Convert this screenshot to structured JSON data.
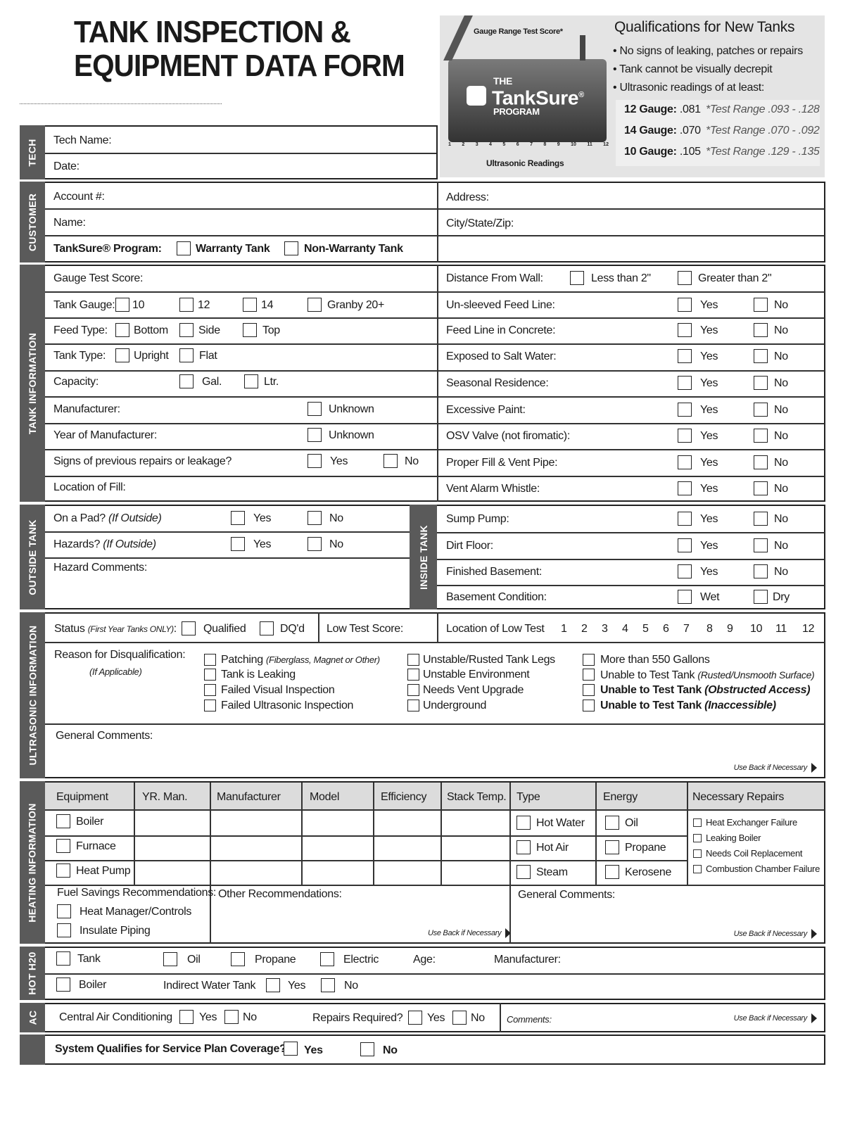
{
  "title": {
    "line1": "TANK INSPECTION &",
    "line2": "EQUIPMENT DATA FORM"
  },
  "logo": {
    "gauge_label": "Gauge Range Test Score*",
    "the": "THE",
    "brand": "TankSure",
    "reg": "®",
    "program": "PROGRAM",
    "readings_label": "Ultrasonic Readings",
    "numbers": [
      "1",
      "2",
      "3",
      "4",
      "5",
      "6",
      "7",
      "8",
      "9",
      "10",
      "11",
      "12"
    ]
  },
  "qualifications": {
    "title": "Qualifications for New Tanks",
    "bullets": [
      "• No signs of leaking, patches or repairs",
      "• Tank cannot be visually decrepit",
      "• Ultrasonic readings of at least:"
    ],
    "gauges": [
      {
        "label": "12 Gauge:",
        "value": ".081",
        "range": "*Test Range .093 - .128"
      },
      {
        "label": "14 Gauge:",
        "value": ".070",
        "range": "*Test Range .070 - .092"
      },
      {
        "label": "10 Gauge:",
        "value": ".105",
        "range": "*Test Range .129 - .135"
      }
    ]
  },
  "tech": {
    "section": "TECH",
    "name": "Tech Name:",
    "date": "Date:"
  },
  "customer": {
    "section": "CUSTOMER",
    "account": "Account #:",
    "address": "Address:",
    "name": "Name:",
    "city": "City/State/Zip:",
    "program": "TankSure® Program:",
    "warranty": "Warranty Tank",
    "non_warranty": "Non-Warranty Tank"
  },
  "tank_info": {
    "section": "TANK INFORMATION",
    "gauge_score": "Gauge Test Score:",
    "tank_gauge": "Tank Gauge:",
    "g10": "10",
    "g12": "12",
    "g14": "14",
    "granby": "Granby 20+",
    "feed_type": "Feed Type:",
    "bottom": "Bottom",
    "side": "Side",
    "top": "Top",
    "tank_type": "Tank Type:",
    "upright": "Upright",
    "flat": "Flat",
    "capacity": "Capacity:",
    "gal": "Gal.",
    "ltr": "Ltr.",
    "manufacturer": "Manufacturer:",
    "unknown": "Unknown",
    "year": "Year of Manufacturer:",
    "signs": "Signs of previous repairs or leakage?",
    "yes": "Yes",
    "no": "No",
    "location_fill": "Location of Fill:",
    "distance": "Distance From Wall:",
    "less": "Less than 2\"",
    "greater": "Greater than 2\"",
    "right_rows": [
      "Un-sleeved Feed Line:",
      "Feed Line in Concrete:",
      "Exposed to Salt Water:",
      "Seasonal Residence:",
      "Excessive Paint:",
      "OSV Valve (not firomatic):",
      "Proper Fill & Vent Pipe:",
      "Vent Alarm Whistle:"
    ]
  },
  "outside_tank": {
    "section": "OUTSIDE TANK",
    "pad": "On a Pad?",
    "pad_note": "(If Outside)",
    "hazards": "Hazards?",
    "hazards_note": "(If Outside)",
    "comments": "Hazard Comments:",
    "yes": "Yes",
    "no": "No"
  },
  "inside_tank": {
    "section": "INSIDE TANK",
    "rows": [
      "Sump Pump:",
      "Dirt Floor:",
      "Finished Basement:"
    ],
    "basement": "Basement Condition:",
    "wet": "Wet",
    "dry": "Dry",
    "yes": "Yes",
    "no": "No"
  },
  "ultrasonic": {
    "section": "ULTRASONIC INFORMATION",
    "status": "Status",
    "status_note": "(First Year Tanks ONLY)",
    "colon": ":",
    "qualified": "Qualified",
    "dq": "DQ'd",
    "low_score": "Low Test Score:",
    "location_low": "Location of Low Test",
    "numbers": [
      "1",
      "2",
      "3",
      "4",
      "5",
      "6",
      "7",
      "8",
      "9",
      "10",
      "11",
      "12"
    ],
    "reason": "Reason for Disqualification:",
    "applicable": "(If Applicable)",
    "col1": [
      {
        "t": "Patching",
        "n": "(Fiberglass, Magnet or Other)"
      },
      {
        "t": "Tank is Leaking"
      },
      {
        "t": "Failed Visual Inspection"
      },
      {
        "t": "Failed Ultrasonic Inspection"
      }
    ],
    "col2": [
      "Unstable/Rusted Tank Legs",
      "Unstable Environment",
      "Needs Vent Upgrade",
      "Underground"
    ],
    "col3": [
      {
        "t": "More than 550 Gallons"
      },
      {
        "t": "Unable to Test Tank",
        "n": "(Rusted/Unsmooth Surface)"
      },
      {
        "t": "Unable to Test Tank",
        "n": "(Obstructed Access)",
        "bold": true
      },
      {
        "t": "Unable to Test Tank",
        "n": "(Inaccessible)",
        "bold": true
      }
    ],
    "general": "General Comments:",
    "use_back": "Use Back if Necessary"
  },
  "heating": {
    "section": "HEATING INFORMATION",
    "headers": [
      "Equipment",
      "YR. Man.",
      "Manufacturer",
      "Model",
      "Efficiency",
      "Stack Temp.",
      "Type",
      "Energy",
      "Necessary Repairs"
    ],
    "equipment": [
      "Boiler",
      "Furnace",
      "Heat Pump"
    ],
    "types": [
      "Hot Water",
      "Hot Air",
      "Steam"
    ],
    "energy": [
      "Oil",
      "Propane",
      "Kerosene"
    ],
    "repairs": [
      "Heat Exchanger Failure",
      "Leaking Boiler",
      "Needs Coil Replacement",
      "Combustion Chamber Failure"
    ],
    "fuel": "Fuel Savings Recommendations:",
    "fuel_items": [
      "Heat Manager/Controls",
      "Insulate Piping"
    ],
    "other": "Other Recommendations:",
    "general": "General Comments:",
    "use_back": "Use Back if Necessary"
  },
  "hot_water": {
    "section": "HOT H20",
    "tank": "Tank",
    "oil": "Oil",
    "propane": "Propane",
    "electric": "Electric",
    "age": "Age:",
    "manufacturer": "Manufacturer:",
    "boiler": "Boiler",
    "indirect": "Indirect Water Tank",
    "yes": "Yes",
    "no": "No"
  },
  "ac": {
    "section": "AC",
    "central": "Central Air Conditioning",
    "yes": "Yes",
    "no": "No",
    "repairs": "Repairs Required?",
    "comments": "Comments:",
    "use_back": "Use Back if Necessary"
  },
  "final": {
    "question": "System Qualifies for Service Plan Coverage?",
    "yes": "Yes",
    "no": "No"
  }
}
